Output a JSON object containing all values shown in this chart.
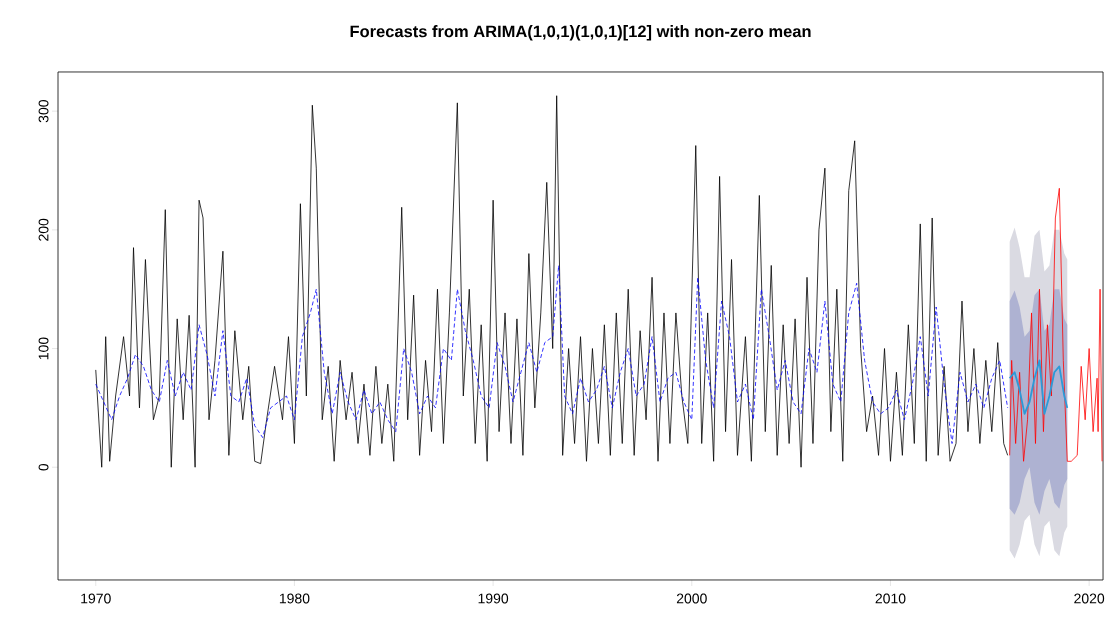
{
  "chart_data": {
    "type": "line",
    "title": "Forecasts from ARIMA(1,0,1)(1,0,1)[12] with non-zero mean",
    "xlim": [
      1968.1,
      2020.7
    ],
    "ylim": [
      -95,
      333
    ],
    "xticks": [
      1970,
      1980,
      1990,
      2000,
      2010,
      2020
    ],
    "yticks": [
      0,
      100,
      200,
      300
    ],
    "series": [
      {
        "color": "#000000",
        "line_style": "solid",
        "x": [
          1970.0,
          1970.3,
          1970.5,
          1970.7,
          1971.0,
          1971.4,
          1971.7,
          1971.9,
          1972.2,
          1972.5,
          1972.9,
          1973.2,
          1973.5,
          1973.8,
          1974.1,
          1974.4,
          1974.7,
          1975.0,
          1975.2,
          1975.4,
          1975.7,
          1976.0,
          1976.4,
          1976.7,
          1977.0,
          1977.4,
          1977.7,
          1978.0,
          1978.3,
          1978.6,
          1979.0,
          1979.4,
          1979.7,
          1980.0,
          1980.3,
          1980.6,
          1980.9,
          1981.1,
          1981.4,
          1981.7,
          1982.0,
          1982.3,
          1982.6,
          1982.9,
          1983.2,
          1983.5,
          1983.8,
          1984.1,
          1984.4,
          1984.7,
          1985.0,
          1985.4,
          1985.7,
          1986.0,
          1986.3,
          1986.6,
          1986.9,
          1987.2,
          1987.5,
          1987.8,
          1988.2,
          1988.5,
          1988.8,
          1989.1,
          1989.4,
          1989.7,
          1990.0,
          1990.3,
          1990.6,
          1990.9,
          1991.2,
          1991.5,
          1991.8,
          1992.1,
          1992.4,
          1992.7,
          1993.0,
          1993.2,
          1993.5,
          1993.8,
          1994.1,
          1994.4,
          1994.7,
          1995.0,
          1995.3,
          1995.6,
          1995.9,
          1996.2,
          1996.5,
          1996.8,
          1997.1,
          1997.4,
          1997.7,
          1998.0,
          1998.3,
          1998.6,
          1998.9,
          1999.2,
          1999.5,
          1999.8,
          2000.2,
          2000.5,
          2000.8,
          2001.1,
          2001.4,
          2001.7,
          2002.0,
          2002.3,
          2002.7,
          2003.0,
          2003.4,
          2003.7,
          2004.0,
          2004.3,
          2004.6,
          2004.9,
          2005.2,
          2005.5,
          2005.8,
          2006.1,
          2006.4,
          2006.7,
          2007.0,
          2007.3,
          2007.6,
          2007.9,
          2008.2,
          2008.5,
          2008.8,
          2009.1,
          2009.4,
          2009.7,
          2010.0,
          2010.3,
          2010.6,
          2010.9,
          2011.2,
          2011.5,
          2011.8,
          2012.1,
          2012.4,
          2012.7,
          2013.0,
          2013.3,
          2013.6,
          2013.9,
          2014.2,
          2014.5,
          2014.8,
          2015.1,
          2015.4,
          2015.7,
          2015.9
        ],
        "values": [
          82,
          0,
          110,
          5,
          60,
          110,
          60,
          185,
          50,
          175,
          40,
          60,
          217,
          0,
          125,
          40,
          128,
          0,
          225,
          210,
          40,
          90,
          182,
          10,
          115,
          40,
          85,
          5,
          3,
          40,
          85,
          40,
          110,
          20,
          222,
          60,
          305,
          252,
          40,
          85,
          5,
          90,
          40,
          80,
          20,
          70,
          10,
          85,
          20,
          70,
          5,
          219,
          40,
          145,
          10,
          90,
          30,
          150,
          20,
          130,
          307,
          60,
          150,
          20,
          120,
          5,
          225,
          30,
          130,
          20,
          125,
          10,
          180,
          50,
          130,
          240,
          100,
          313,
          10,
          100,
          20,
          110,
          5,
          100,
          20,
          120,
          10,
          130,
          20,
          150,
          10,
          115,
          40,
          160,
          5,
          130,
          20,
          130,
          60,
          20,
          271,
          20,
          130,
          5,
          245,
          30,
          175,
          10,
          110,
          5,
          229,
          30,
          170,
          10,
          120,
          20,
          125,
          0,
          160,
          20,
          200,
          252,
          30,
          150,
          5,
          233,
          275,
          100,
          30,
          60,
          10,
          100,
          5,
          80,
          10,
          120,
          20,
          205,
          5,
          210,
          10,
          85,
          5,
          20,
          140,
          30,
          100,
          20,
          90,
          30,
          105,
          20,
          10
        ]
      },
      {
        "color": "#0000ff",
        "line_style": "dashed",
        "x": [
          1970.0,
          1970.4,
          1970.8,
          1971.2,
          1971.6,
          1972.0,
          1972.4,
          1972.8,
          1973.2,
          1973.6,
          1974.0,
          1974.4,
          1974.8,
          1975.2,
          1975.6,
          1976.0,
          1976.4,
          1976.8,
          1977.2,
          1977.6,
          1978.0,
          1978.4,
          1978.8,
          1979.2,
          1979.6,
          1980.0,
          1980.4,
          1980.8,
          1981.1,
          1981.5,
          1981.9,
          1982.3,
          1982.7,
          1983.1,
          1983.5,
          1983.9,
          1984.3,
          1984.7,
          1985.1,
          1985.5,
          1985.9,
          1986.3,
          1986.7,
          1987.1,
          1987.5,
          1987.9,
          1988.2,
          1988.6,
          1989.0,
          1989.4,
          1989.8,
          1990.2,
          1990.6,
          1991.0,
          1991.4,
          1991.8,
          1992.2,
          1992.6,
          1993.0,
          1993.3,
          1993.6,
          1994.0,
          1994.4,
          1994.8,
          1995.2,
          1995.6,
          1996.0,
          1996.4,
          1996.8,
          1997.2,
          1997.6,
          1998.0,
          1998.4,
          1998.8,
          1999.2,
          1999.6,
          2000.0,
          2000.3,
          2000.7,
          2001.1,
          2001.5,
          2001.9,
          2002.3,
          2002.7,
          2003.1,
          2003.5,
          2003.9,
          2004.3,
          2004.7,
          2005.1,
          2005.5,
          2005.9,
          2006.3,
          2006.7,
          2007.1,
          2007.5,
          2007.9,
          2008.3,
          2008.7,
          2009.1,
          2009.5,
          2009.9,
          2010.3,
          2010.7,
          2011.1,
          2011.5,
          2011.9,
          2012.3,
          2012.7,
          2013.1,
          2013.5,
          2013.9,
          2014.3,
          2014.7,
          2015.1,
          2015.5,
          2015.9
        ],
        "values": [
          70,
          55,
          40,
          60,
          75,
          95,
          85,
          65,
          55,
          90,
          60,
          80,
          65,
          120,
          95,
          60,
          115,
          60,
          55,
          75,
          35,
          25,
          50,
          55,
          60,
          40,
          110,
          130,
          150,
          80,
          45,
          80,
          55,
          40,
          65,
          45,
          55,
          40,
          30,
          100,
          80,
          45,
          60,
          50,
          100,
          90,
          150,
          115,
          90,
          60,
          50,
          105,
          85,
          55,
          80,
          105,
          80,
          105,
          110,
          170,
          60,
          45,
          75,
          55,
          65,
          85,
          50,
          80,
          100,
          60,
          70,
          110,
          55,
          75,
          80,
          55,
          40,
          160,
          90,
          50,
          140,
          110,
          55,
          70,
          40,
          150,
          110,
          65,
          90,
          55,
          45,
          100,
          80,
          140,
          70,
          55,
          130,
          155,
          90,
          55,
          45,
          50,
          65,
          40,
          70,
          110,
          60,
          135,
          70,
          20,
          80,
          55,
          70,
          50,
          75,
          90,
          50
        ]
      },
      {
        "color": "#ff0000",
        "line_style": "solid",
        "x": [
          2016.0,
          2016.1,
          2016.3,
          2016.5,
          2016.7,
          2016.9,
          2017.1,
          2017.3,
          2017.5,
          2017.7,
          2017.9,
          2018.1,
          2018.3,
          2018.5,
          2018.7,
          2018.9,
          2019.1,
          2019.4,
          2019.6,
          2019.8,
          2020.0,
          2020.2,
          2020.4,
          2020.45,
          2020.55,
          2020.65
        ],
        "values": [
          10,
          90,
          20,
          80,
          5,
          40,
          130,
          20,
          150,
          30,
          120,
          60,
          210,
          235,
          90,
          5,
          5,
          10,
          85,
          40,
          100,
          30,
          75,
          30,
          150,
          5
        ]
      },
      {
        "color": "#dadae2",
        "x": [
          2016.0,
          2016.25,
          2016.5,
          2016.75,
          2017.0,
          2017.25,
          2017.5,
          2017.75,
          2018.0,
          2018.25,
          2018.5,
          2018.75,
          2018.9
        ],
        "values": [
          null,
          null,
          null,
          null,
          null,
          null,
          null,
          null,
          null,
          null,
          null,
          null,
          null
        ],
        "lower": [
          -70,
          -77,
          -65,
          -45,
          -40,
          -65,
          -75,
          -50,
          -45,
          -70,
          -75,
          -55,
          -50
        ],
        "upper": [
          190,
          202,
          185,
          160,
          160,
          195,
          200,
          165,
          170,
          200,
          200,
          180,
          175
        ]
      },
      {
        "color": "#aeb2d2",
        "x": [
          2016.0,
          2016.25,
          2016.5,
          2016.75,
          2017.0,
          2017.25,
          2017.5,
          2017.75,
          2018.0,
          2018.25,
          2018.5,
          2018.75,
          2018.9
        ],
        "values": [
          null,
          null,
          null,
          null,
          null,
          null,
          null,
          null,
          null,
          null,
          null,
          null,
          null
        ],
        "lower": [
          -35,
          -40,
          -30,
          -10,
          0,
          -30,
          -40,
          -20,
          -10,
          -30,
          -35,
          -15,
          -10
        ],
        "upper": [
          140,
          149,
          135,
          110,
          115,
          145,
          150,
          115,
          120,
          150,
          150,
          125,
          120
        ]
      },
      {
        "color": "#2b9ad8",
        "line_style": "solid",
        "x": [
          2016.0,
          2016.25,
          2016.5,
          2016.75,
          2017.0,
          2017.25,
          2017.5,
          2017.75,
          2018.0,
          2018.25,
          2018.5,
          2018.75,
          2018.9
        ],
        "values": [
          75,
          80,
          65,
          45,
          55,
          75,
          90,
          45,
          60,
          80,
          85,
          60,
          50
        ]
      }
    ]
  }
}
